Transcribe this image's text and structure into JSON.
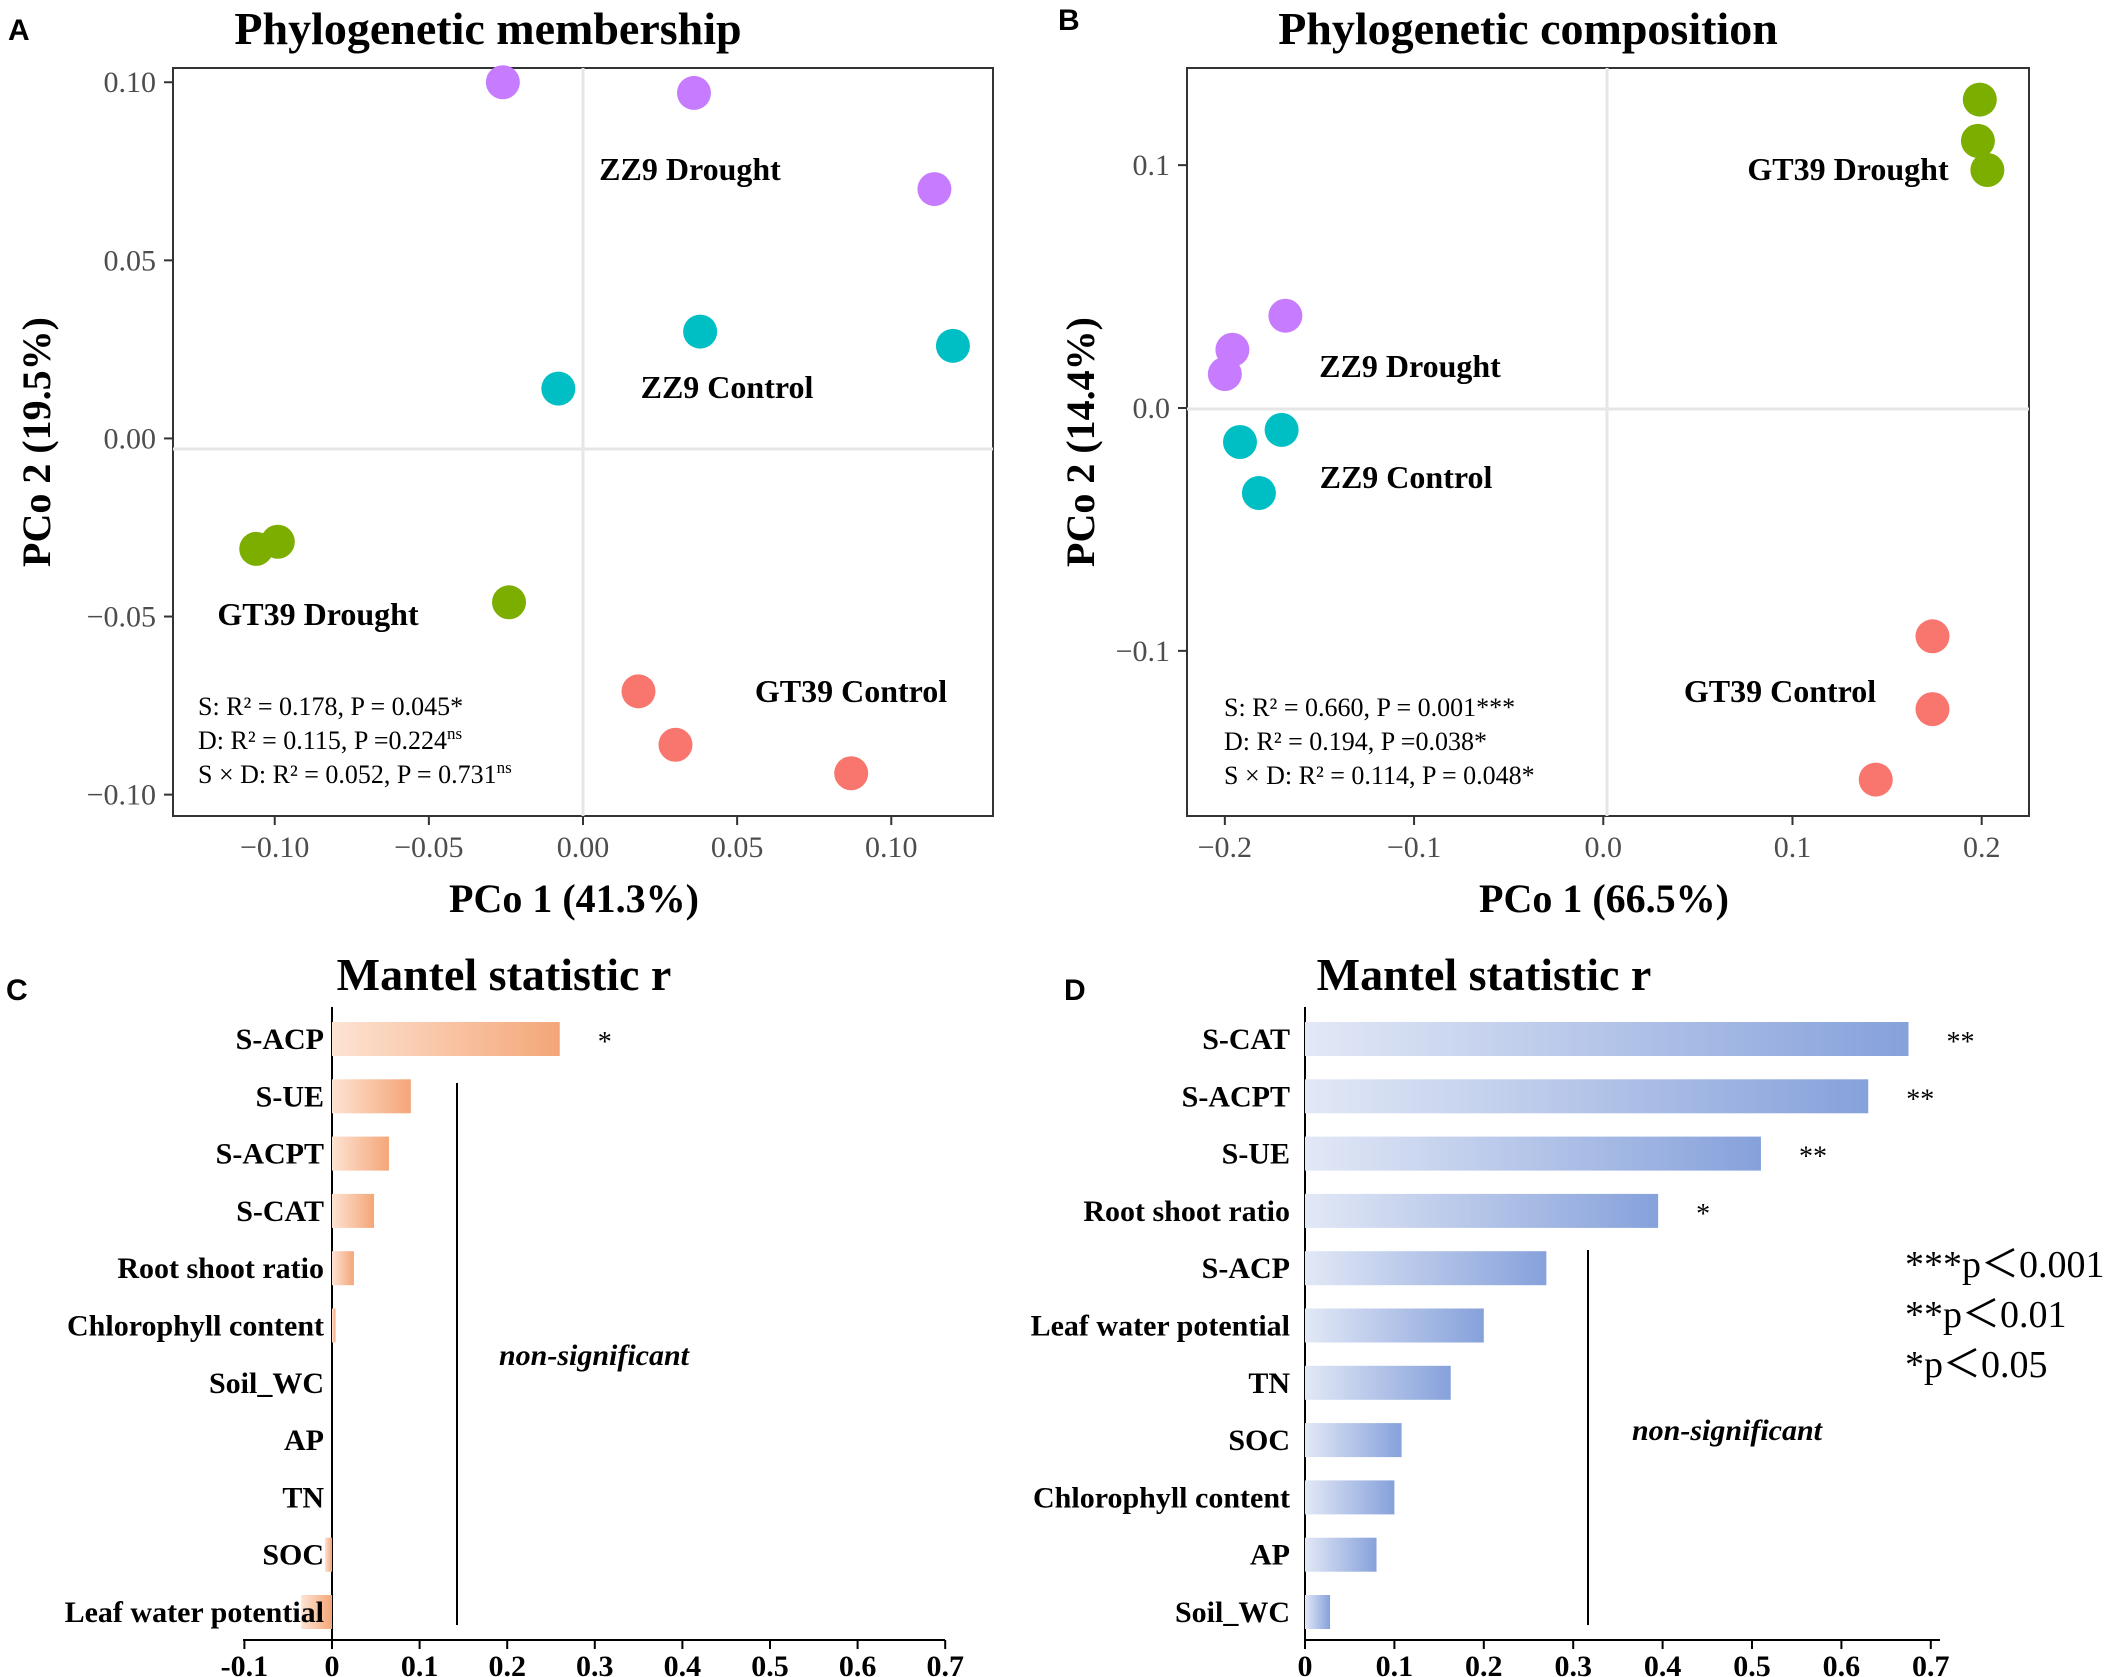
{
  "panelA": {
    "letter": "A",
    "chart_data": {
      "type": "scatter",
      "title": "Phylogenetic membership",
      "xlabel": "PCo 1 (41.3%)",
      "ylabel": "PCo 2 (19.5%)",
      "xlim": [
        -0.133,
        0.133
      ],
      "ylim": [
        -0.106,
        0.104
      ],
      "xticks": [
        -0.1,
        -0.05,
        0.0,
        0.05,
        0.1
      ],
      "xtick_labels": [
        "−0.10",
        "−0.05",
        "0.00",
        "0.05",
        "0.10"
      ],
      "yticks": [
        0.1,
        0.05,
        0.0,
        -0.05,
        -0.1
      ],
      "ytick_labels": [
        "0.10",
        "0.05",
        "0.00",
        "−0.05",
        "−0.10"
      ],
      "series": [
        {
          "name": "ZZ9 Drought",
          "color": "#c77cff",
          "points": [
            [
              -0.026,
              0.1
            ],
            [
              0.036,
              0.097
            ],
            [
              0.114,
              0.07
            ]
          ]
        },
        {
          "name": "ZZ9 Control",
          "color": "#00bfc4",
          "points": [
            [
              -0.008,
              0.014
            ],
            [
              0.038,
              0.03
            ],
            [
              0.12,
              0.026
            ]
          ]
        },
        {
          "name": "GT39 Drought",
          "color": "#7cae00",
          "points": [
            [
              -0.106,
              -0.031
            ],
            [
              -0.099,
              -0.029
            ],
            [
              -0.024,
              -0.046
            ]
          ]
        },
        {
          "name": "GT39 Control",
          "color": "#f8766d",
          "points": [
            [
              0.018,
              -0.071
            ],
            [
              0.03,
              -0.086
            ],
            [
              0.087,
              -0.094
            ]
          ]
        }
      ],
      "annotations": [
        "S: R² = 0.178, P = 0.045*",
        "D: R² = 0.115, P =0.224ns",
        "S × D: R² = 0.052, P = 0.731ns"
      ]
    },
    "stats": {
      "s_line": "S: R² = 0.178, P = 0.045*",
      "d_line_main": "D: R² = 0.115, P =0.224",
      "d_line_sup": "ns",
      "sd_line_main": "S × D: R² = 0.052, P = 0.731",
      "sd_line_sup": "ns"
    }
  },
  "panelB": {
    "letter": "B",
    "chart_data": {
      "type": "scatter",
      "title": "Phylogenetic composition",
      "xlabel": "PCo 1 (66.5%)",
      "ylabel": "PCo 2 (14.4%)",
      "xlim": [
        -0.22,
        0.225
      ],
      "ylim": [
        -0.168,
        0.14
      ],
      "xticks": [
        -0.2,
        -0.1,
        0.0,
        0.1,
        0.2
      ],
      "xtick_labels": [
        "−0.2",
        "−0.1",
        "0.0",
        "0.1",
        "0.2"
      ],
      "yticks": [
        0.1,
        0.0,
        -0.1
      ],
      "ytick_labels": [
        "0.1",
        "0.0",
        "−0.1"
      ],
      "series": [
        {
          "name": "GT39 Drought",
          "color": "#7cae00",
          "points": [
            [
              0.199,
              0.127
            ],
            [
              0.198,
              0.11
            ],
            [
              0.203,
              0.098
            ]
          ]
        },
        {
          "name": "ZZ9 Drought",
          "color": "#c77cff",
          "points": [
            [
              -0.168,
              0.038
            ],
            [
              -0.196,
              0.024
            ],
            [
              -0.2,
              0.014
            ]
          ]
        },
        {
          "name": "ZZ9 Control",
          "color": "#00bfc4",
          "points": [
            [
              -0.192,
              -0.014
            ],
            [
              -0.17,
              -0.009
            ],
            [
              -0.182,
              -0.035
            ]
          ]
        },
        {
          "name": "GT39 Control",
          "color": "#f8766d",
          "points": [
            [
              0.174,
              -0.094
            ],
            [
              0.174,
              -0.124
            ],
            [
              0.144,
              -0.153
            ]
          ]
        }
      ],
      "annotations": [
        "S: R² = 0.660, P = 0.001***",
        "D: R² = 0.194, P =0.038*",
        "S × D: R² = 0.114, P = 0.048*"
      ]
    },
    "stats": {
      "s_line": "S: R² = 0.660, P = 0.001***",
      "d_line": "D: R² = 0.194, P =0.038*",
      "sd_line": "S × D: R² = 0.114, P = 0.048*"
    }
  },
  "panelC": {
    "letter": "C",
    "chart_data": {
      "type": "bar",
      "orientation": "horizontal",
      "title": "Mantel statistic r",
      "categories": [
        "S-ACP",
        "S-UE",
        "S-ACPT",
        "S-CAT",
        "Root shoot ratio",
        "Chlorophyll content",
        "Soil_WC",
        "AP",
        "TN",
        "SOC",
        "Leaf water potential"
      ],
      "values": [
        0.26,
        0.09,
        0.065,
        0.048,
        0.025,
        0.004,
        0.0,
        0.0,
        0.0,
        -0.008,
        -0.035
      ],
      "significance": [
        "*",
        "",
        "",
        "",
        "",
        "",
        "",
        "",
        "",
        "",
        ""
      ],
      "xlim": [
        -0.1,
        0.7
      ],
      "xticks": [
        -0.1,
        0,
        0.1,
        0.2,
        0.3,
        0.4,
        0.5,
        0.6,
        0.7
      ],
      "xtick_labels": [
        "-0.1",
        "0",
        "0.1",
        "0.2",
        "0.3",
        "0.4",
        "0.5",
        "0.6",
        "0.7"
      ],
      "color_light": "#fde3d2",
      "color_dark": "#f4a678",
      "threshold_label": "non-significant"
    }
  },
  "panelD": {
    "letter": "D",
    "chart_data": {
      "type": "bar",
      "orientation": "horizontal",
      "title": "Mantel statistic r",
      "categories": [
        "S-CAT",
        "S-ACPT",
        "S-UE",
        "Root shoot ratio",
        "S-ACP",
        "Leaf water potential",
        "TN",
        "SOC",
        "Chlorophyll content",
        "AP",
        "Soil_WC"
      ],
      "values": [
        0.675,
        0.63,
        0.51,
        0.395,
        0.27,
        0.2,
        0.163,
        0.108,
        0.1,
        0.08,
        0.028
      ],
      "significance": [
        "**",
        "**",
        "**",
        "*",
        "",
        "",
        "",
        "",
        "",
        "",
        ""
      ],
      "xlim": [
        0,
        0.7
      ],
      "xticks": [
        0,
        0.1,
        0.2,
        0.3,
        0.4,
        0.5,
        0.6,
        0.7
      ],
      "xtick_labels": [
        "0",
        "0.1",
        "0.2",
        "0.3",
        "0.4",
        "0.5",
        "0.6",
        "0.7"
      ],
      "color_light": "#e2e8f6",
      "color_dark": "#86a1db",
      "threshold_label": "non-significant"
    },
    "legend": [
      "***p＜0.001",
      "**p＜0.01",
      "*p＜0.05"
    ]
  }
}
